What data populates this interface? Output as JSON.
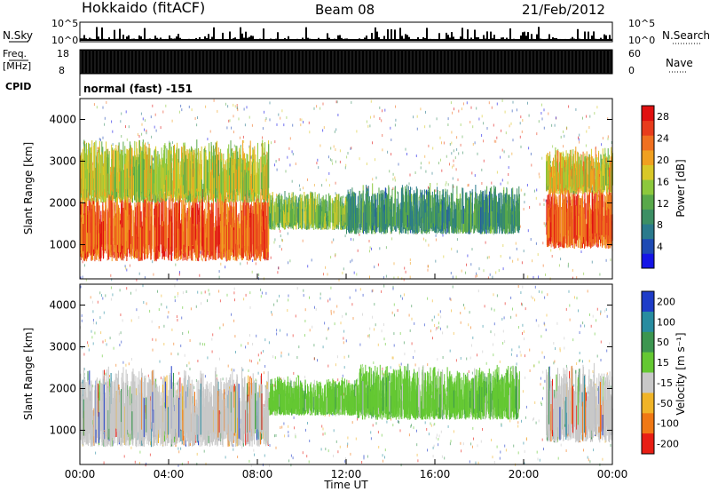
{
  "header": {
    "station": "Hokkaido (fitACF)",
    "beam": "Beam 08",
    "date": "21/Feb/2012"
  },
  "noise_panel": {
    "left_label": "N.Sky",
    "right_label": "N.Search",
    "ticks": [
      "10^5",
      "10^0"
    ],
    "right_ticks": [
      "10^5",
      "10^0"
    ]
  },
  "freq_panel": {
    "left_label_1": "Freq.",
    "left_label_2": "[MHz]",
    "cpid_label": "CPID",
    "left_ticks": [
      "18",
      "8"
    ],
    "right_ticks": [
      "60",
      "0"
    ],
    "right_label": "Nave",
    "cpid_text": "normal (fast) -151"
  },
  "chart_data": [
    {
      "type": "heatmap",
      "name": "power",
      "ylabel": "Slant Range [km]",
      "yticks": [
        1000,
        2000,
        3000,
        4000
      ],
      "ylim": [
        180,
        4500
      ],
      "colorbar": {
        "label": "Power [dB]",
        "ticks": [
          4,
          8,
          12,
          16,
          20,
          24,
          28
        ],
        "range": [
          0,
          30
        ],
        "colors": [
          "#1414e6",
          "#1e4ab4",
          "#2a7a8c",
          "#3c8f64",
          "#58a84a",
          "#8cc83c",
          "#d8c828",
          "#f0a020",
          "#f07020",
          "#e83c1c",
          "#e01010"
        ]
      },
      "bands": [
        {
          "t0": 0.0,
          "t1": 8.5,
          "r0": 600,
          "r1": 2000,
          "level": 0.85
        },
        {
          "t0": 0.0,
          "t1": 8.5,
          "r0": 2000,
          "r1": 3200,
          "level": 0.55
        },
        {
          "t0": 8.5,
          "t1": 12.0,
          "r0": 1350,
          "r1": 2100,
          "level": 0.45
        },
        {
          "t0": 12.0,
          "t1": 19.8,
          "r0": 1250,
          "r1": 2200,
          "level": 0.3
        },
        {
          "t0": 21.0,
          "t1": 24.0,
          "r0": 900,
          "r1": 2200,
          "level": 0.85
        },
        {
          "t0": 21.0,
          "t1": 24.0,
          "r0": 2200,
          "r1": 3100,
          "level": 0.6
        }
      ]
    },
    {
      "type": "heatmap",
      "name": "velocity",
      "xlabel": "Time UT",
      "ylabel": "Slant Range [km]",
      "xticks": [
        "00:00",
        "04:00",
        "08:00",
        "12:00",
        "16:00",
        "20:00",
        "00:00"
      ],
      "yticks": [
        1000,
        2000,
        3000,
        4000
      ],
      "ylim": [
        180,
        4500
      ],
      "colorbar": {
        "label": "Velocity [m s⁻¹]",
        "ticks": [
          "200",
          "100",
          "50",
          "15",
          "-15",
          "-50",
          "-100",
          "-200"
        ],
        "colors": [
          "#1e3cc8",
          "#288ca0",
          "#3c9650",
          "#64c832",
          "#c8c8c8",
          "#f0b428",
          "#f07814",
          "#e81e14"
        ]
      },
      "bands": [
        {
          "t0": 0.0,
          "t1": 8.5,
          "r0": 600,
          "r1": 2100,
          "level": 0.5
        },
        {
          "t0": 8.5,
          "t1": 12.5,
          "r0": 1350,
          "r1": 2100,
          "level": 0.25
        },
        {
          "t0": 12.5,
          "t1": 19.8,
          "r0": 1250,
          "r1": 2300,
          "level": 0.25
        },
        {
          "t0": 21.0,
          "t1": 24.0,
          "r0": 700,
          "r1": 2200,
          "level": 0.5
        }
      ]
    }
  ],
  "bottom_axis": {
    "xlabel": "Time UT",
    "ticks": [
      "00:00",
      "04:00",
      "08:00",
      "12:00",
      "16:00",
      "20:00",
      "00:00"
    ]
  }
}
